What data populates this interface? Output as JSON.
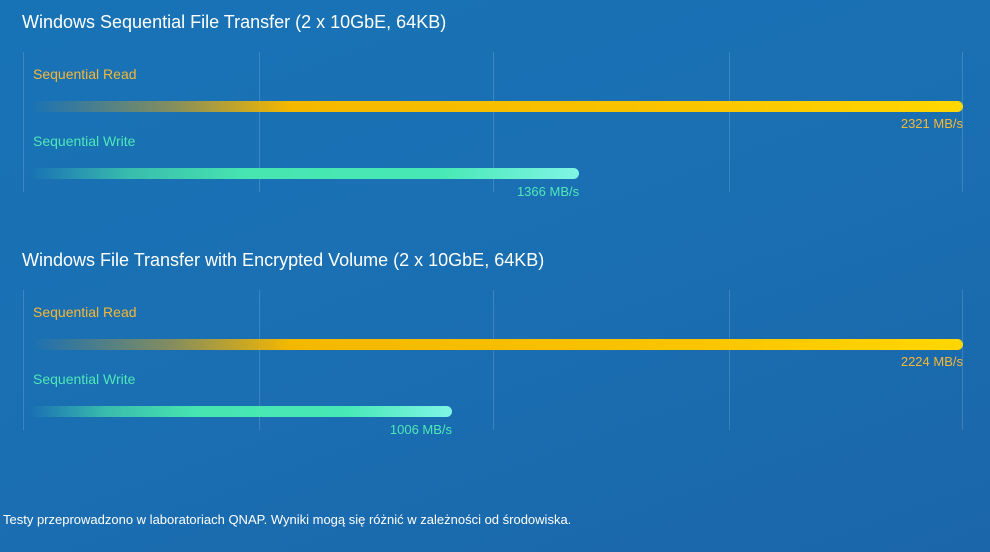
{
  "colors": {
    "read": "#f7b733",
    "write": "#4ee8b8",
    "read_bar_start": "rgba(247,183,51,0)",
    "read_bar_end": "#ffd700",
    "write_bar_start": "rgba(78,232,184,0)",
    "write_bar_end": "#80f5e5"
  },
  "footnote": "Testy przeprowadzono w laboratoriach QNAP. Wyniki mogą się różnić w zależności od środowiska.",
  "chart_data": [
    {
      "type": "bar",
      "orientation": "horizontal",
      "title": "Windows Sequential File Transfer (2 x 10GbE, 64KB)",
      "unit": "MB/s",
      "xlim": [
        0,
        2321
      ],
      "grid": true,
      "series": [
        {
          "name": "Sequential Read",
          "value": 2321,
          "label": "2321 MB/s"
        },
        {
          "name": "Sequential Write",
          "value": 1366,
          "label": "1366 MB/s"
        }
      ]
    },
    {
      "type": "bar",
      "orientation": "horizontal",
      "title": "Windows File Transfer with Encrypted Volume (2 x 10GbE, 64KB)",
      "unit": "MB/s",
      "xlim": [
        0,
        2224
      ],
      "grid": true,
      "series": [
        {
          "name": "Sequential Read",
          "value": 2224,
          "label": "2224 MB/s"
        },
        {
          "name": "Sequential Write",
          "value": 1006,
          "label": "1006 MB/s"
        }
      ]
    }
  ]
}
